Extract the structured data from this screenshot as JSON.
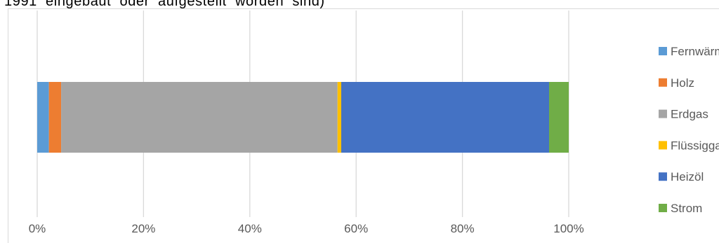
{
  "header_text": "1991 eingebaut oder aufgestellt worden sind)",
  "chart_data": {
    "type": "bar",
    "orientation": "horizontal",
    "stacked": "percent",
    "categories": [
      ""
    ],
    "series": [
      {
        "name": "Fernwärme",
        "values": [
          2.2
        ],
        "color": "#5b9bd5"
      },
      {
        "name": "Holz",
        "values": [
          2.3
        ],
        "color": "#ed7d31"
      },
      {
        "name": "Erdgas",
        "values": [
          52.0
        ],
        "color": "#a5a5a5"
      },
      {
        "name": "Flüssiggas",
        "values": [
          0.7
        ],
        "color": "#ffc000"
      },
      {
        "name": "Heizöl",
        "values": [
          39.1
        ],
        "color": "#4472c4"
      },
      {
        "name": "Strom",
        "values": [
          3.7
        ],
        "color": "#70ad47"
      }
    ],
    "xlim": [
      0,
      100
    ],
    "x_ticks": [
      "0%",
      "20%",
      "40%",
      "60%",
      "80%",
      "100%"
    ],
    "grid": true,
    "legend_position": "right",
    "title": "",
    "xlabel": "",
    "ylabel": ""
  }
}
